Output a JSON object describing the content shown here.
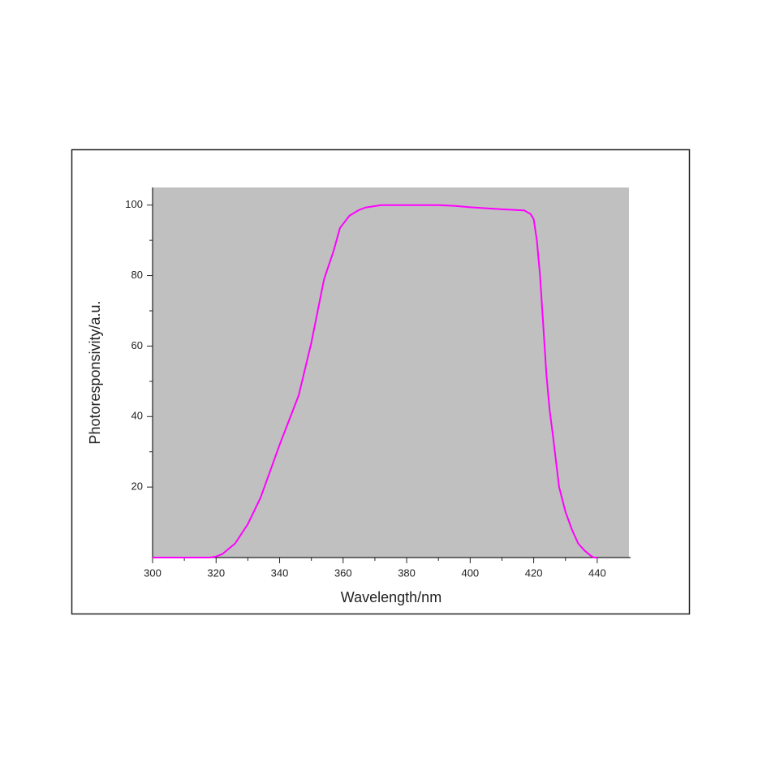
{
  "chart_data": {
    "type": "line",
    "xlabel": "Wavelength/nm",
    "ylabel": "Photoresponsivity/a.u.",
    "xlim": [
      300,
      450
    ],
    "ylim": [
      0,
      105
    ],
    "xticks": [
      300,
      320,
      340,
      360,
      380,
      400,
      420,
      440
    ],
    "yticks": [
      20,
      40,
      60,
      80,
      100
    ],
    "background": "#c0c0c0",
    "series": [
      {
        "color": "#ff00ff",
        "x": [
          300,
          310,
          318,
          320,
          322,
          326,
          330,
          334,
          340,
          346,
          350,
          354,
          357,
          359,
          362,
          365,
          367,
          372,
          380,
          390,
          395,
          400,
          410,
          417,
          419,
          420,
          421,
          422,
          423,
          424,
          425,
          426,
          428,
          430,
          432,
          434,
          436,
          438,
          439,
          440
        ],
        "values": [
          0,
          0,
          0,
          0.3,
          1,
          4,
          9.5,
          17,
          32,
          46,
          61,
          79,
          87,
          93.5,
          97,
          98.6,
          99.3,
          100,
          100,
          100,
          99.8,
          99.4,
          98.8,
          98.5,
          97.5,
          96,
          90,
          80,
          66,
          52,
          42,
          35,
          20,
          13,
          8,
          4,
          2,
          0.5,
          0,
          0
        ]
      }
    ]
  }
}
